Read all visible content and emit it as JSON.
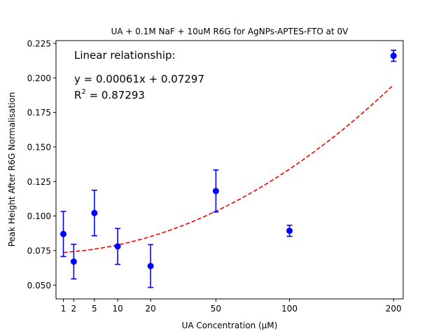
{
  "chart_data": {
    "type": "scatter",
    "title": "UA + 0.1M NaF + 10uM R6G for AgNPs-APTES-FTO at 0V",
    "xlabel": "UA Concentration (μM)",
    "ylabel": "Peak Height After R6G Normalisation",
    "x_scale": "sqrt",
    "xlim": [
      0.5,
      211
    ],
    "ylim": [
      0.04,
      0.227
    ],
    "x_ticks": [
      1,
      2,
      5,
      10,
      20,
      50,
      100,
      200
    ],
    "x_tick_labels": [
      "1",
      "2",
      "5",
      "10",
      "20",
      "50",
      "100",
      "200"
    ],
    "y_ticks": [
      0.05,
      0.075,
      0.1,
      0.125,
      0.15,
      0.175,
      0.2,
      0.225
    ],
    "y_tick_labels": [
      "0.050",
      "0.075",
      "0.100",
      "0.125",
      "0.150",
      "0.175",
      "0.200",
      "0.225"
    ],
    "grid": false,
    "series": [
      {
        "x": [
          1,
          2,
          5,
          10,
          20,
          50,
          100,
          200
        ],
        "y": [
          0.087,
          0.067,
          0.1022,
          0.078,
          0.0638,
          0.1181,
          0.0893,
          0.216
        ],
        "yerr": [
          0.0163,
          0.0125,
          0.0165,
          0.013,
          0.0155,
          0.0152,
          0.004,
          0.004
        ],
        "color": "#0000ff",
        "marker": "circle"
      }
    ],
    "fit": {
      "slope": 0.00061,
      "intercept": 0.07297,
      "x_range": [
        1,
        200
      ],
      "color": "#ff0000",
      "style": "dashed"
    },
    "annotation": {
      "heading": "Linear relationship:",
      "equation": "y = 0.00061x + 0.07297",
      "r2_prefix": "R",
      "r2_sup": "2",
      "r2_value": " = 0.87293"
    }
  }
}
